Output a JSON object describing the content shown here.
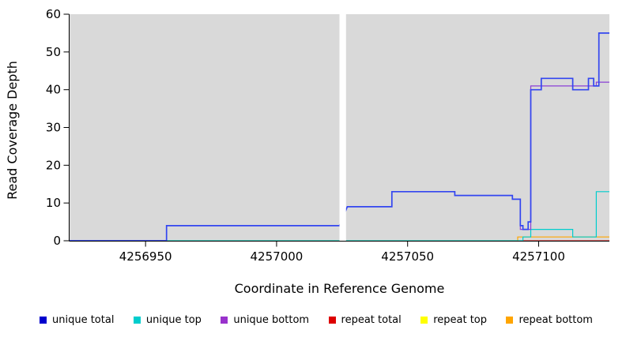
{
  "chart_data": {
    "type": "line",
    "title": "",
    "xlabel": "Coordinate in Reference Genome",
    "ylabel": "Read Coverage Depth",
    "xlim": [
      4256921,
      4257127
    ],
    "ylim": [
      0,
      60
    ],
    "xticks": [
      4256950,
      4257000,
      4257050,
      4257100
    ],
    "yticks": [
      0,
      10,
      20,
      30,
      40,
      50,
      60
    ],
    "panel_bg": "#d9d9d9",
    "masked_region": [
      4257024,
      4257026.5
    ],
    "grid": "off",
    "legend_position": "bottom",
    "series": [
      {
        "name": "repeat top",
        "color": "#FFFF00",
        "width": 1,
        "points": [
          [
            4256921,
            0
          ],
          [
            4257127,
            0
          ]
        ]
      },
      {
        "name": "repeat bottom",
        "color": "#FFA500",
        "width": 1.2,
        "points": [
          [
            4256921,
            0
          ],
          [
            4257092,
            0
          ],
          [
            4257092,
            1
          ],
          [
            4257127,
            1
          ]
        ]
      },
      {
        "name": "repeat total",
        "color": "#DD0000",
        "width": 1,
        "points": [
          [
            4256921,
            0
          ],
          [
            4257127,
            0
          ]
        ]
      },
      {
        "name": "unique top",
        "color": "#00CDCD",
        "width": 1.2,
        "points": [
          [
            4256921,
            0
          ],
          [
            4257094,
            0
          ],
          [
            4257094,
            1
          ],
          [
            4257097,
            1
          ],
          [
            4257097,
            3
          ],
          [
            4257113,
            3
          ],
          [
            4257113,
            1
          ],
          [
            4257122,
            1
          ],
          [
            4257122,
            13
          ],
          [
            4257127,
            13
          ]
        ]
      },
      {
        "name": "unique bottom",
        "color": "#8B3FD6",
        "width": 1.2,
        "points": [
          [
            4256921,
            0
          ],
          [
            4256958,
            0
          ],
          [
            4256958,
            4
          ],
          [
            4257024,
            4
          ],
          [
            4257027,
            9
          ],
          [
            4257044,
            9
          ],
          [
            4257044,
            13
          ],
          [
            4257068,
            13
          ],
          [
            4257068,
            12
          ],
          [
            4257090,
            12
          ],
          [
            4257090,
            11
          ],
          [
            4257093,
            11
          ],
          [
            4257093,
            3
          ],
          [
            4257097,
            3
          ],
          [
            4257097,
            41
          ],
          [
            4257122,
            41
          ],
          [
            4257122,
            42
          ],
          [
            4257127,
            42
          ]
        ]
      },
      {
        "name": "unique total",
        "color": "#3346F0",
        "width": 1.7,
        "points": [
          [
            4256921,
            0
          ],
          [
            4256958,
            0
          ],
          [
            4256958,
            4
          ],
          [
            4257024,
            4
          ],
          [
            4257027,
            9
          ],
          [
            4257044,
            9
          ],
          [
            4257044,
            13
          ],
          [
            4257068,
            13
          ],
          [
            4257068,
            12
          ],
          [
            4257090,
            12
          ],
          [
            4257090,
            11
          ],
          [
            4257093,
            11
          ],
          [
            4257093,
            4
          ],
          [
            4257094,
            4
          ],
          [
            4257094,
            3
          ],
          [
            4257096,
            3
          ],
          [
            4257096,
            5
          ],
          [
            4257097,
            5
          ],
          [
            4257097,
            40
          ],
          [
            4257101,
            40
          ],
          [
            4257101,
            43
          ],
          [
            4257113,
            43
          ],
          [
            4257113,
            40
          ],
          [
            4257119,
            40
          ],
          [
            4257119,
            43
          ],
          [
            4257121,
            43
          ],
          [
            4257121,
            41
          ],
          [
            4257123,
            41
          ],
          [
            4257123,
            55
          ],
          [
            4257127,
            55
          ]
        ]
      }
    ]
  },
  "legend": {
    "items": [
      {
        "label": "unique total",
        "color": "#0000CD"
      },
      {
        "label": "unique top",
        "color": "#00CDCD"
      },
      {
        "label": "unique bottom",
        "color": "#9932CC"
      },
      {
        "label": "repeat total",
        "color": "#DD0000"
      },
      {
        "label": "repeat top",
        "color": "#FFFF00"
      },
      {
        "label": "repeat bottom",
        "color": "#FFA500"
      }
    ]
  }
}
